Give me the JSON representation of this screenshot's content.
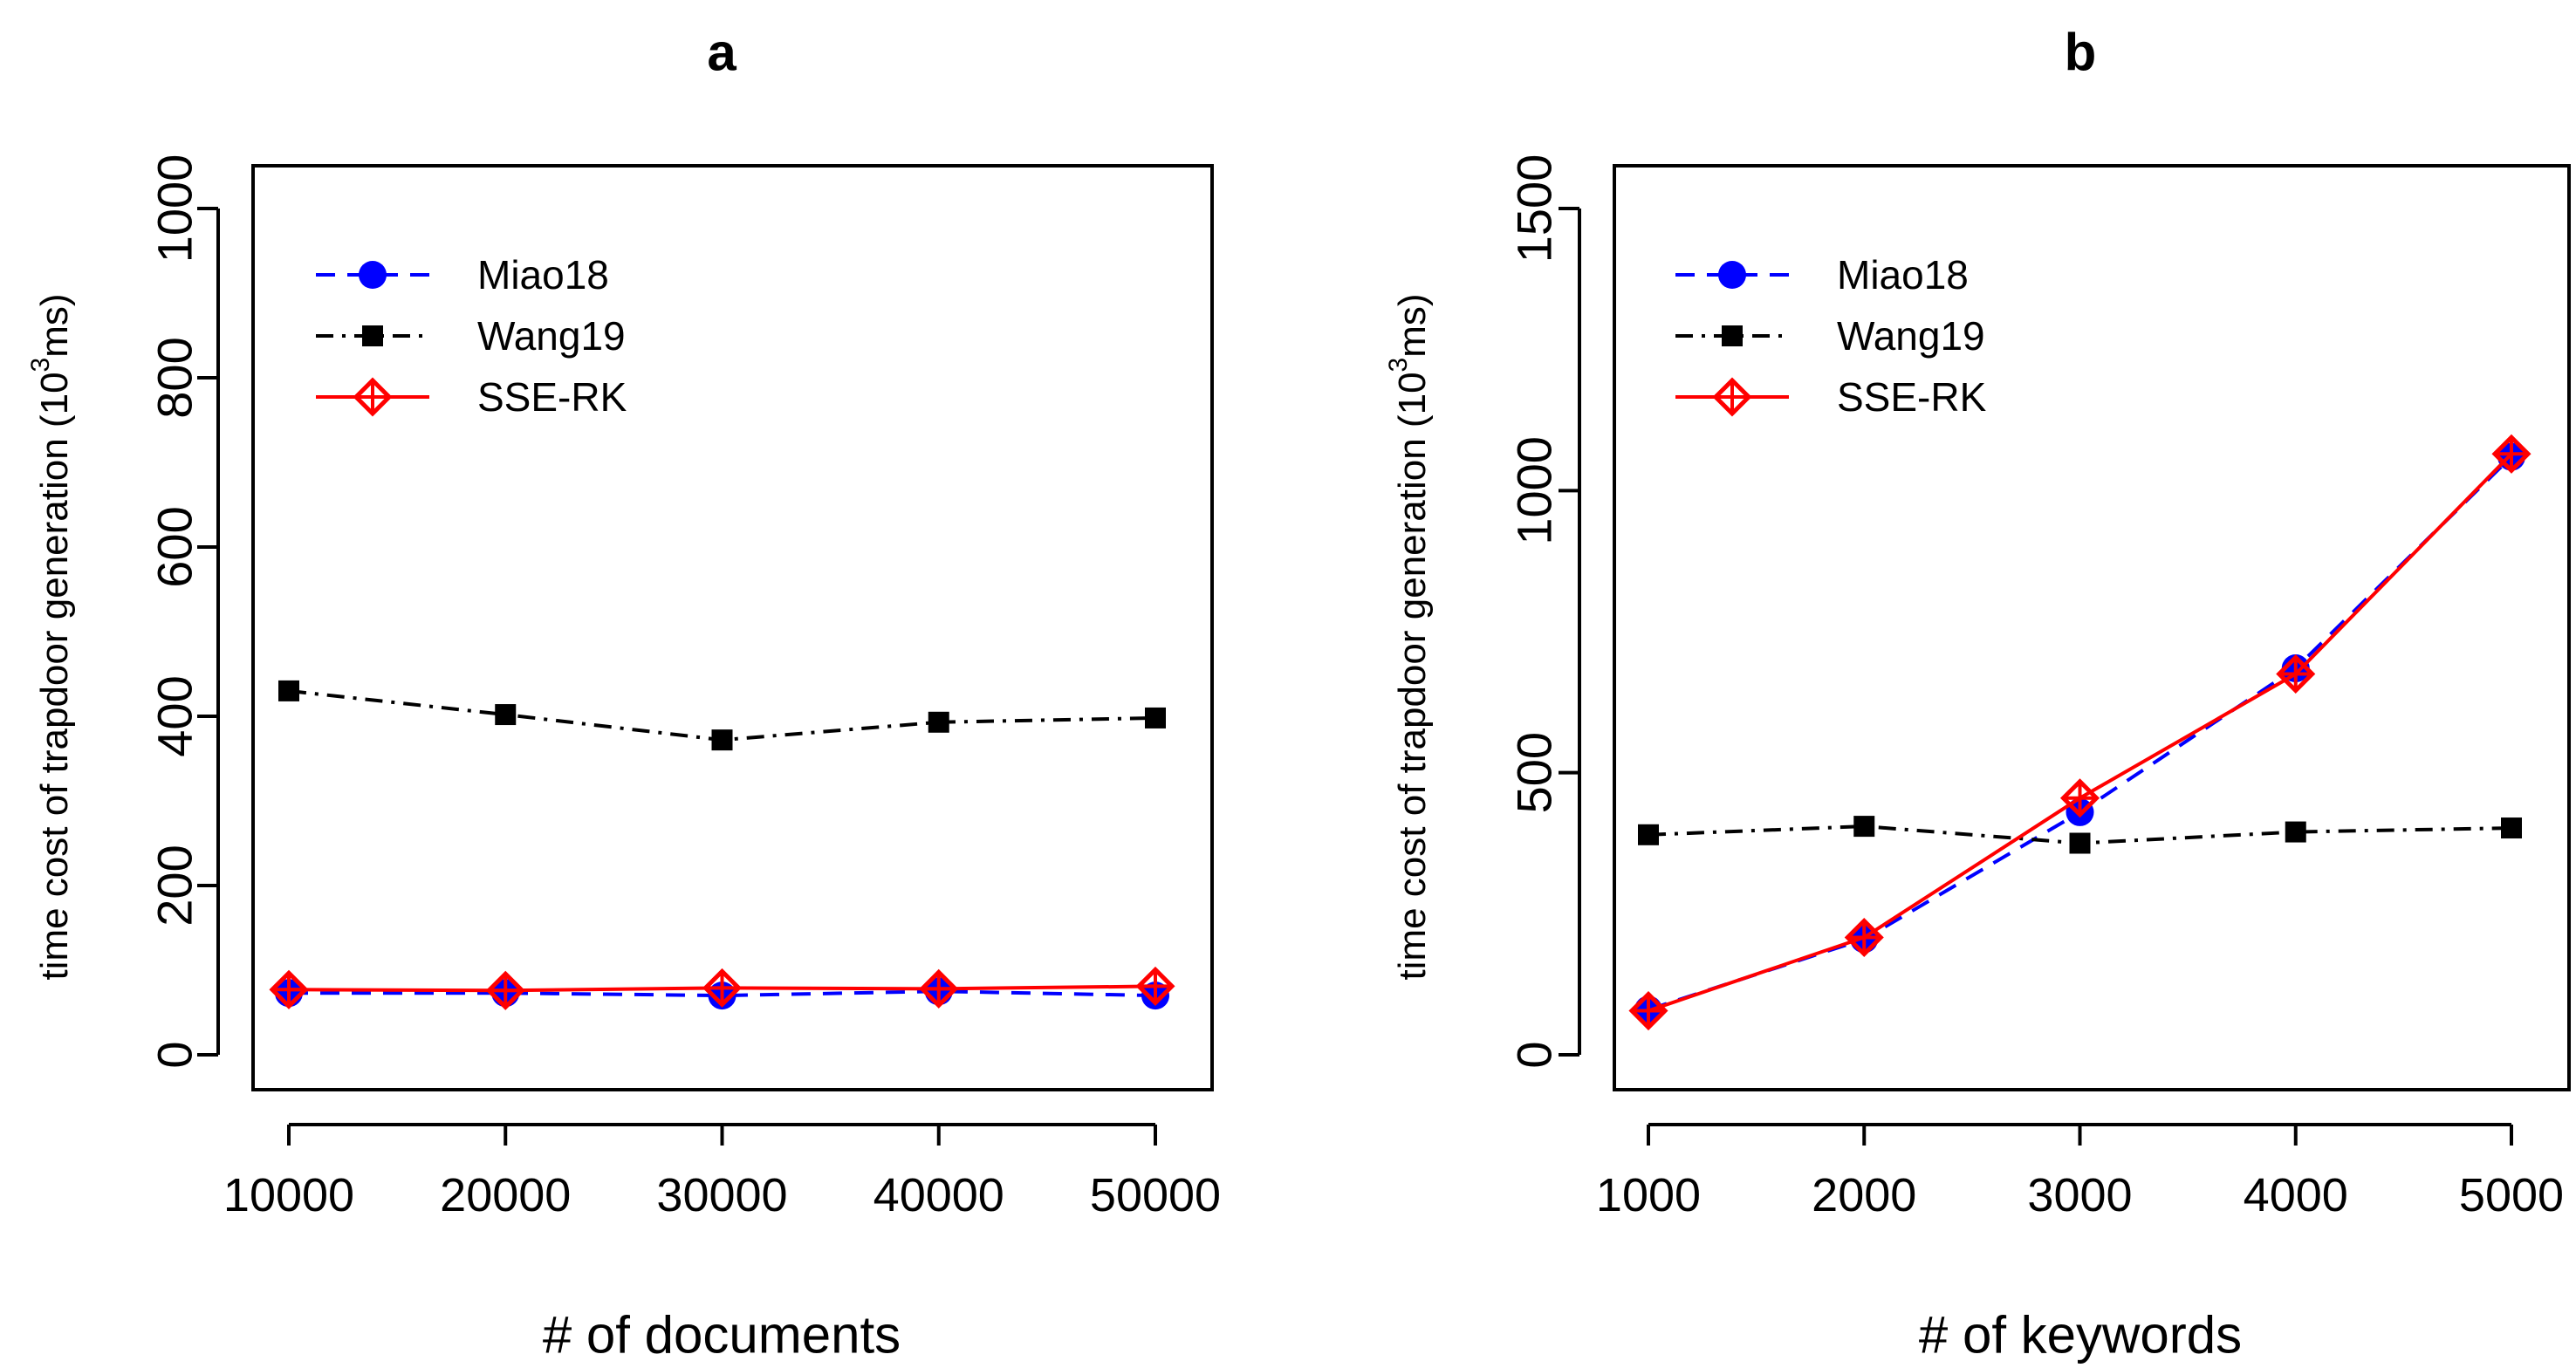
{
  "chart_data": [
    {
      "type": "line",
      "title": "a",
      "xlabel": "# of documents",
      "ylabel": "time cost of trapdoor generation",
      "ylabel_unit_base": "10",
      "ylabel_unit_exp": "3",
      "ylabel_unit_suffix": "ms)",
      "ylabel_unit_prefix": " (",
      "x": [
        10000,
        20000,
        30000,
        40000,
        50000
      ],
      "x_tick_labels": [
        "10000",
        "20000",
        "30000",
        "40000",
        "50000"
      ],
      "xlim": [
        10000,
        50000
      ],
      "ylim": [
        0,
        1000
      ],
      "y_ticks": [
        0,
        200,
        400,
        600,
        800,
        1000
      ],
      "y_tick_labels": [
        "0",
        "200",
        "400",
        "600",
        "800",
        "1000"
      ],
      "legend_position": "top-left",
      "series": [
        {
          "name": "Miao18",
          "values": [
            73,
            73,
            70,
            75,
            70
          ],
          "color": "#0000ff",
          "line": "dashed",
          "marker": "circle"
        },
        {
          "name": "Wang19",
          "values": [
            430,
            402,
            372,
            393,
            398
          ],
          "color": "#000000",
          "line": "dashdot",
          "marker": "square"
        },
        {
          "name": "SSE-RK",
          "values": [
            77,
            76,
            79,
            78,
            81
          ],
          "color": "#ff0000",
          "line": "solid",
          "marker": "diamond-plus"
        }
      ]
    },
    {
      "type": "line",
      "title": "b",
      "xlabel": "# of keywords",
      "ylabel": "time cost of trapdoor generation",
      "ylabel_unit_base": "10",
      "ylabel_unit_exp": "3",
      "ylabel_unit_suffix": "ms)",
      "ylabel_unit_prefix": " (",
      "x": [
        1000,
        2000,
        3000,
        4000,
        5000
      ],
      "x_tick_labels": [
        "1000",
        "2000",
        "3000",
        "4000",
        "5000"
      ],
      "xlim": [
        1000,
        5000
      ],
      "ylim": [
        0,
        1500
      ],
      "y_ticks": [
        0,
        500,
        1000,
        1500
      ],
      "y_tick_labels": [
        "0",
        "500",
        "1000",
        "1500"
      ],
      "legend_position": "top-left",
      "series": [
        {
          "name": "Miao18",
          "values": [
            80,
            205,
            430,
            685,
            1060
          ],
          "color": "#0000ff",
          "line": "dashed",
          "marker": "circle"
        },
        {
          "name": "Wang19",
          "values": [
            390,
            405,
            375,
            395,
            402
          ],
          "color": "#000000",
          "line": "dashdot",
          "marker": "square"
        },
        {
          "name": "SSE-RK",
          "values": [
            78,
            208,
            455,
            675,
            1065
          ],
          "color": "#ff0000",
          "line": "solid",
          "marker": "diamond-plus"
        }
      ]
    }
  ]
}
